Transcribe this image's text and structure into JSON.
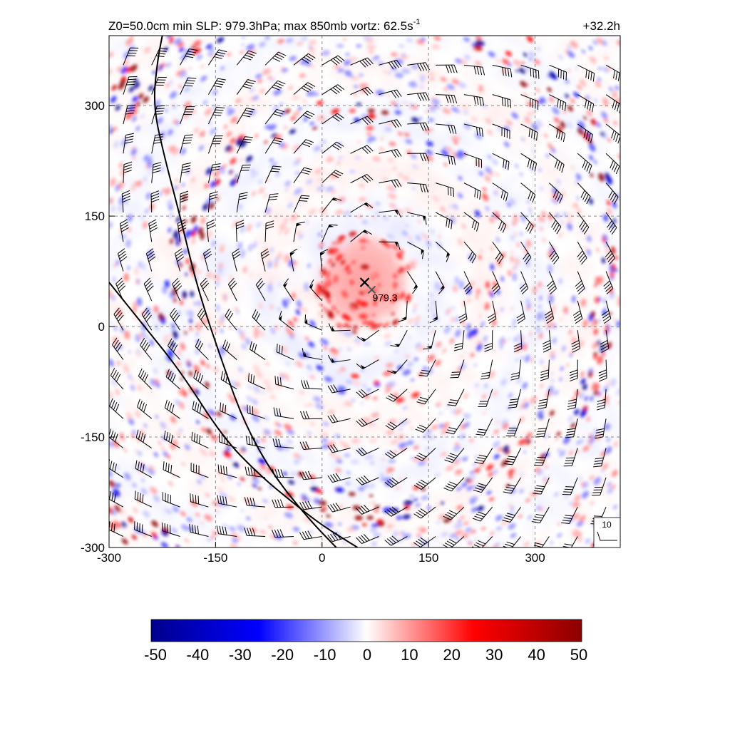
{
  "chart_data": {
    "type": "heatmap",
    "title_left": "Z0=50.0cm  min SLP: 979.3hPa; max 850mb vortz:  62.5s",
    "title_left_sup": "-1",
    "title_right": "+32.2h",
    "xlim": [
      -300,
      420
    ],
    "ylim": [
      -300,
      395
    ],
    "xticks": [
      -300,
      -150,
      0,
      150,
      300
    ],
    "yticks": [
      -300,
      -150,
      0,
      150,
      300
    ],
    "xtick_labels": [
      "-300",
      "-150",
      "0",
      "150",
      "300"
    ],
    "ytick_labels": [
      "-300",
      "-150",
      "0",
      "150",
      "300"
    ],
    "grid": true,
    "vortex_center": {
      "x": 60,
      "y": 60
    },
    "min_slp_marker": {
      "x": 70,
      "y": 50,
      "label": "979.3"
    },
    "wind_barb_reference_label": "10",
    "colorbar": {
      "min": -50,
      "max": 50,
      "tick_labels": [
        "-50",
        "-40",
        "-30",
        "-20",
        "-10",
        "0",
        "10",
        "20",
        "30",
        "40",
        "50"
      ],
      "colors": [
        "#00008c",
        "#0000ff",
        "#ffffff",
        "#ff0000",
        "#8c0000"
      ]
    },
    "front_lines": [
      {
        "points": [
          [
            -225,
            395
          ],
          [
            -232,
            360
          ],
          [
            -238,
            300
          ],
          [
            -222,
            230
          ],
          [
            -200,
            150
          ],
          [
            -175,
            50
          ],
          [
            -140,
            -50
          ],
          [
            -110,
            -130
          ],
          [
            -70,
            -200
          ],
          [
            -20,
            -260
          ],
          [
            20,
            -300
          ]
        ]
      },
      {
        "points": [
          [
            -300,
            60
          ],
          [
            -250,
            0
          ],
          [
            -200,
            -60
          ],
          [
            -140,
            -150
          ],
          [
            -90,
            -200
          ],
          [
            -40,
            -240
          ],
          [
            0,
            -270
          ],
          [
            50,
            -300
          ]
        ]
      }
    ],
    "wind_field": {
      "spacing": 40,
      "center": {
        "x": 60,
        "y": 60
      }
    }
  }
}
